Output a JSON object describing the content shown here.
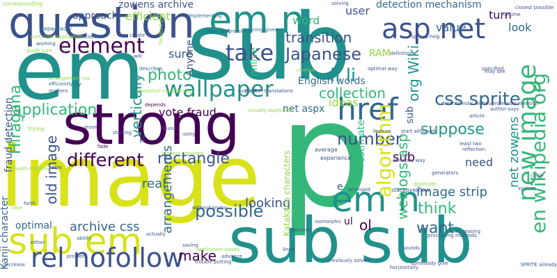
{
  "palette": {
    "background": "#ffffff",
    "dark_purple": "#440154",
    "indigo": "#3b528b",
    "slate_blue": "#31688e",
    "teal": "#21918c",
    "sea_green": "#35b779",
    "light_green": "#90d743",
    "yellow": "#fde725"
  },
  "words": [
    {
      "id": "em-large",
      "text": "em",
      "color": "#21918c"
    },
    {
      "id": "sub-large",
      "text": "sub",
      "color": "#21918c"
    },
    {
      "id": "p-large",
      "text": "p",
      "color": "#35b779"
    },
    {
      "id": "image-large",
      "text": "image",
      "color": "#d7e219"
    },
    {
      "id": "strong",
      "text": "strong",
      "color": "#440154"
    },
    {
      "id": "question",
      "text": "question",
      "color": "#3b528b"
    },
    {
      "id": "sub-sub",
      "text": "sub sub",
      "color": "#21918c"
    },
    {
      "id": "em-n-top",
      "text": "em n",
      "color": "#21918c"
    },
    {
      "id": "asp-net",
      "text": "asp net",
      "color": "#3b528b"
    },
    {
      "id": "element",
      "text": "element",
      "color": "#440154"
    },
    {
      "id": "take",
      "text": "take",
      "color": "#3b528b"
    },
    {
      "id": "wallpaper",
      "text": "wallpaper",
      "color": "#21918c"
    },
    {
      "id": "href",
      "text": "href",
      "color": "#31688e"
    },
    {
      "id": "sub-em",
      "text": "sub em",
      "color": "#d7e219"
    },
    {
      "id": "rel-nofollow",
      "text": "rel nofollow",
      "color": "#3b528b"
    },
    {
      "id": "em-n-mid",
      "text": "em n",
      "color": "#21918c"
    },
    {
      "id": "japanese",
      "text": "Japanese",
      "color": "#3b528b"
    },
    {
      "id": "transition",
      "text": "transition",
      "color": "#3b528b"
    },
    {
      "id": "li-li",
      "text": "li li",
      "color": "#21918c"
    },
    {
      "id": "css-sprite",
      "text": "css sprite",
      "color": "#31688e"
    },
    {
      "id": "collection",
      "text": "collection",
      "color": "#35b779"
    },
    {
      "id": "number",
      "text": "number",
      "color": "#3b528b"
    },
    {
      "id": "different",
      "text": "different",
      "color": "#440154"
    },
    {
      "id": "rectangle",
      "text": "rectangle",
      "color": "#3b528b"
    },
    {
      "id": "application",
      "text": "application",
      "color": "#35b779"
    },
    {
      "id": "photo",
      "text": "photo",
      "color": "#35b779"
    },
    {
      "id": "suppose",
      "text": "suppose",
      "color": "#21918c"
    },
    {
      "id": "value",
      "text": "value",
      "color": "#31688e"
    },
    {
      "id": "user",
      "text": "user",
      "color": "#3b528b"
    },
    {
      "id": "detection-mechanism",
      "text": "detection mechanism",
      "color": "#31688e"
    },
    {
      "id": "zowens-archive",
      "text": "zowens archive",
      "color": "#3b528b"
    },
    {
      "id": "efficient",
      "text": "efficient",
      "color": "#90d743"
    },
    {
      "id": "approach",
      "text": "approach",
      "color": "#3b528b"
    },
    {
      "id": "word",
      "text": "word",
      "color": "#35b779"
    },
    {
      "id": "english-words",
      "text": "English words",
      "color": "#31688e"
    },
    {
      "id": "net-aspx",
      "text": "net aspx",
      "color": "#31688e"
    },
    {
      "id": "possible",
      "text": "possible",
      "color": "#31688e"
    },
    {
      "id": "archive-css",
      "text": "archive css",
      "color": "#31688e"
    },
    {
      "id": "want",
      "text": "want",
      "color": "#31688e"
    },
    {
      "id": "think",
      "text": "think",
      "color": "#35b779"
    },
    {
      "id": "image-strip",
      "text": "image strip",
      "color": "#31688e"
    },
    {
      "id": "make",
      "text": "make",
      "color": "#440154"
    },
    {
      "id": "looking",
      "text": "looking",
      "color": "#3b528b"
    },
    {
      "id": "real",
      "text": "real",
      "color": "#31688e"
    },
    {
      "id": "optimal",
      "text": "optimal",
      "color": "#31688e"
    },
    {
      "id": "sure",
      "text": "sure",
      "color": "#3b528b"
    },
    {
      "id": "vote-fraud",
      "text": "vote fraud",
      "color": "#440154"
    },
    {
      "id": "ideas",
      "text": "ideas",
      "color": "#90d743"
    },
    {
      "id": "need",
      "text": "need",
      "color": "#3b528b"
    },
    {
      "id": "look",
      "text": "look",
      "color": "#31688e"
    },
    {
      "id": "turn",
      "text": "turn",
      "color": "#440154"
    },
    {
      "id": "ol",
      "text": "ol",
      "color": "#440154"
    },
    {
      "id": "ul",
      "text": "ul",
      "color": "#440154"
    },
    {
      "id": "li",
      "text": "li",
      "color": "#3b528b"
    },
    {
      "id": "sub-small",
      "text": "sub",
      "color": "#440154"
    },
    {
      "id": "kanji-character",
      "text": "Kanji character",
      "color": "#31688e"
    },
    {
      "id": "fraud-detection",
      "text": "fraud detection",
      "color": "#3b528b"
    },
    {
      "id": "hiragana",
      "text": "Hiragana",
      "color": "#35b779"
    },
    {
      "id": "vertically",
      "text": "vertically",
      "color": "#21918c"
    },
    {
      "id": "arrangements",
      "text": "arrangements",
      "color": "#31688e"
    },
    {
      "id": "old-image",
      "text": "old image",
      "color": "#3b528b"
    },
    {
      "id": "algorithm",
      "text": "algorithm",
      "color": "#d7e219"
    },
    {
      "id": "new-image",
      "text": "new image",
      "color": "#35b779"
    },
    {
      "id": "en-wikipedia-org",
      "text": "en wikipedia org",
      "color": "#35b779"
    },
    {
      "id": "org-wiki",
      "text": "org Wiki",
      "color": "#21918c"
    },
    {
      "id": "net-zowens",
      "text": "net zowens",
      "color": "#21918c"
    },
    {
      "id": "weblogs-asp",
      "text": "weblogs asp",
      "color": "#35b779"
    },
    {
      "id": "katakana-characters",
      "text": "Katakana characters",
      "color": "#90d743"
    },
    {
      "id": "anyone",
      "text": "Anyone",
      "color": "#3b528b"
    },
    {
      "id": "onlive",
      "text": "onlive",
      "color": "#35b779"
    },
    {
      "id": "ram",
      "text": "RAM",
      "color": "#90d743"
    },
    {
      "id": "estimate",
      "text": "estimate",
      "color": "#35b779"
    },
    {
      "id": "e",
      "text": "e",
      "color": "#3b528b"
    },
    {
      "id": "sub-vert",
      "text": "sub",
      "color": "#3b528b"
    },
    {
      "id": "s-corresponding",
      "text": "corresponding",
      "color": "#90d743"
    },
    {
      "id": "s-repeatedly",
      "text": "repeatedly",
      "color": "#31688e"
    },
    {
      "id": "s-optimizations",
      "text": "optimizations",
      "color": "#31688e"
    },
    {
      "id": "s-particular-application",
      "text": "particular application",
      "color": "#90d743"
    },
    {
      "id": "s-working",
      "text": "working",
      "color": "#31688e"
    },
    {
      "id": "s-guide-sure",
      "text": "guide sure",
      "color": "#90d743"
    },
    {
      "id": "s-efficiently-lay",
      "text": "efficiently lay",
      "color": "#31688e"
    },
    {
      "id": "s-matters",
      "text": "matters",
      "color": "#3b528b"
    },
    {
      "id": "s-arrangement-css",
      "text": "arrangement css",
      "color": "#90d743"
    },
    {
      "id": "s-will",
      "text": "will",
      "color": "#3b528b"
    },
    {
      "id": "s-describes",
      "text": "describes",
      "color": "#31688e"
    },
    {
      "id": "s-resolution-compression",
      "text": "resolution compression",
      "color": "#90d743"
    },
    {
      "id": "s-depends",
      "text": "depends",
      "color": "#440154"
    },
    {
      "id": "s-trying",
      "text": "trying",
      "color": "#90d743"
    },
    {
      "id": "s-fade",
      "text": "fade",
      "color": "#440154"
    },
    {
      "id": "s-smooth-transition",
      "text": "smooth transition",
      "color": "#90d743"
    },
    {
      "id": "s-helps",
      "text": "helps",
      "color": "#3b528b"
    },
    {
      "id": "s-forth",
      "text": "forth",
      "color": "#3b528b"
    },
    {
      "id": "s-case",
      "text": "case",
      "color": "#90d743"
    },
    {
      "id": "s-either",
      "text": "either",
      "color": "#3b528b"
    },
    {
      "id": "s-decrease",
      "text": "decrease",
      "color": "#3b528b"
    },
    {
      "id": "s-ability",
      "text": "ability",
      "color": "#31688e"
    },
    {
      "id": "s-problem",
      "text": "problem",
      "color": "#3b528b"
    },
    {
      "id": "s-create",
      "text": "create",
      "color": "#3b528b"
    },
    {
      "id": "s-done-progressively",
      "text": "done progressively",
      "color": "#31688e"
    },
    {
      "id": "s-implementing",
      "text": "implementing",
      "color": "#31688e"
    },
    {
      "id": "s-strong-given",
      "text": "strong given",
      "color": "#31688e"
    },
    {
      "id": "s-closest-possible",
      "text": "closest possible",
      "color": "#3b528b"
    },
    {
      "id": "s-may-see",
      "text": "may see",
      "color": "#3b528b"
    },
    {
      "id": "s-optimal-way",
      "text": "optimal way",
      "color": "#3b528b"
    },
    {
      "id": "s-definition",
      "text": "definition",
      "color": "#3b528b"
    },
    {
      "id": "s-specified",
      "text": "specified",
      "color": "#3b528b"
    },
    {
      "id": "s-author-says",
      "text": "author says",
      "color": "#3b528b"
    },
    {
      "id": "s-start-although",
      "text": "start although",
      "color": "#3b528b"
    },
    {
      "id": "s-feature",
      "text": "feature",
      "color": "#3b528b"
    },
    {
      "id": "s-article",
      "text": "article",
      "color": "#3b528b"
    },
    {
      "id": "s-least-two",
      "text": "least two",
      "color": "#3b528b"
    },
    {
      "id": "s-reflection",
      "text": "reflection",
      "color": "#3b528b"
    },
    {
      "id": "s-sprites-help",
      "text": "Sprites help",
      "color": "#3b528b"
    },
    {
      "id": "s-duplicate",
      "text": "duplicate",
      "color": "#90d743"
    },
    {
      "id": "s-generators",
      "text": "generators",
      "color": "#3b528b"
    },
    {
      "id": "s-stackoverflow",
      "text": "stackoverflow",
      "color": "#3b528b"
    },
    {
      "id": "s-arranged",
      "text": "arranged",
      "color": "#3b528b"
    },
    {
      "id": "s-average",
      "text": "average",
      "color": "#3b528b"
    },
    {
      "id": "s-experience",
      "text": "experience",
      "color": "#3b528b"
    },
    {
      "id": "s-processing-methods",
      "text": "processing methods",
      "color": "#3b528b"
    },
    {
      "id": "s-increasing",
      "text": "increasing",
      "color": "#3b528b"
    },
    {
      "id": "s-sprite-already",
      "text": "SPRITE already",
      "color": "#3b528b"
    },
    {
      "id": "s-sounds",
      "text": "sounds",
      "color": "#3b528b"
    },
    {
      "id": "s-horizontally",
      "text": "horizontally",
      "color": "#3b528b"
    },
    {
      "id": "s-somebody-give",
      "text": "somebody give",
      "color": "#3b528b"
    },
    {
      "id": "s-previously-solved",
      "text": "previously solved",
      "color": "#3b528b"
    },
    {
      "id": "s-minutes",
      "text": "minutes",
      "color": "#3b528b"
    },
    {
      "id": "s-lined",
      "text": "lined",
      "color": "#3b528b"
    },
    {
      "id": "s-isomorphic",
      "text": "isomorphic",
      "color": "#3b528b"
    },
    {
      "id": "s-actually",
      "text": "actually",
      "color": "#3b528b"
    },
    {
      "id": "s-saving",
      "text": "saving",
      "color": "#3b528b"
    },
    {
      "id": "s-trouble-putting",
      "text": "trouble putting",
      "color": "#3b528b"
    },
    {
      "id": "s-application-based",
      "text": "application based",
      "color": "#90d743"
    },
    {
      "id": "s-without-giving",
      "text": "without giving",
      "color": "#3b528b"
    },
    {
      "id": "s-starting",
      "text": "starting",
      "color": "#3b528b"
    },
    {
      "id": "s-arose",
      "text": "arose",
      "color": "#3b528b"
    },
    {
      "id": "s-found",
      "text": "found",
      "color": "#3b528b"
    },
    {
      "id": "s-using",
      "text": "using",
      "color": "#3b528b"
    },
    {
      "id": "s-every-x",
      "text": "every X",
      "color": "#3b528b"
    },
    {
      "id": "s-english-translations",
      "text": "English translations",
      "color": "#3b528b"
    },
    {
      "id": "s-visually-duplicated",
      "text": "visually duplicated",
      "color": "#90d743"
    },
    {
      "id": "s-process-provided",
      "text": "process provided",
      "color": "#90d743"
    },
    {
      "id": "s-advance",
      "text": "advance",
      "color": "#3b528b"
    },
    {
      "id": "s-hundred-pics",
      "text": "hundred pics",
      "color": "#90d743"
    },
    {
      "id": "s-deterministic-without",
      "text": "deterministic without",
      "color": "#3b528b"
    },
    {
      "id": "s-professors-mention",
      "text": "professors mention",
      "color": "#3b528b"
    },
    {
      "id": "s-runtime",
      "text": "runtime",
      "color": "#3b528b"
    },
    {
      "id": "s-solving",
      "text": "solving",
      "color": "#3b528b"
    },
    {
      "id": "s-change",
      "text": "change",
      "color": "#90d743"
    },
    {
      "id": "s-effective-way",
      "text": "effective way",
      "color": "#3b528b"
    },
    {
      "id": "s-circle",
      "text": "circle",
      "color": "#3b528b"
    },
    {
      "id": "s-system",
      "text": "system",
      "color": "#3b528b"
    }
  ]
}
